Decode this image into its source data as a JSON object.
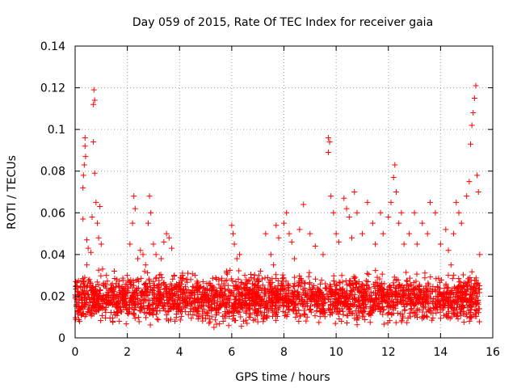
{
  "chart_data": {
    "type": "scatter",
    "title": "Day 059 of 2015, Rate Of TEC Index for receiver gaia",
    "xlabel": "GPS time / hours",
    "ylabel": "ROTI / TECUs",
    "xlim": [
      0,
      16
    ],
    "ylim": [
      0,
      0.14
    ],
    "x_ticks": [
      0,
      2,
      4,
      6,
      8,
      10,
      12,
      14,
      16
    ],
    "x_tick_labels": [
      "0",
      "2",
      "4",
      "6",
      "8",
      "10",
      "12",
      "14",
      "16"
    ],
    "y_ticks": [
      0,
      0.02,
      0.04,
      0.06,
      0.08,
      0.1,
      0.12,
      0.14
    ],
    "y_tick_labels": [
      "0",
      "0.02",
      "0.04",
      "0.06",
      "0.08",
      "0.1",
      "0.12",
      "0.14"
    ],
    "grid": true,
    "marker": "plus",
    "color": "#ff0000",
    "series": [
      {
        "name": "ROTI",
        "points": [
          [
            0.05,
            0.016
          ],
          [
            0.1,
            0.012
          ],
          [
            0.15,
            0.02
          ],
          [
            0.2,
            0.014
          ],
          [
            0.25,
            0.018
          ],
          [
            0.3,
            0.057
          ],
          [
            0.3,
            0.072
          ],
          [
            0.32,
            0.078
          ],
          [
            0.35,
            0.083
          ],
          [
            0.38,
            0.092
          ],
          [
            0.38,
            0.096
          ],
          [
            0.4,
            0.087
          ],
          [
            0.45,
            0.035
          ],
          [
            0.45,
            0.047
          ],
          [
            0.5,
            0.043
          ],
          [
            0.55,
            0.028
          ],
          [
            0.6,
            0.041
          ],
          [
            0.65,
            0.058
          ],
          [
            0.7,
            0.094
          ],
          [
            0.7,
            0.112
          ],
          [
            0.72,
            0.119
          ],
          [
            0.75,
            0.114
          ],
          [
            0.75,
            0.079
          ],
          [
            0.8,
            0.065
          ],
          [
            0.85,
            0.055
          ],
          [
            0.9,
            0.048
          ],
          [
            0.95,
            0.063
          ],
          [
            1.0,
            0.045
          ],
          [
            1.05,
            0.033
          ],
          [
            1.1,
            0.025
          ],
          [
            1.2,
            0.03
          ],
          [
            1.3,
            0.022
          ],
          [
            1.5,
            0.032
          ],
          [
            1.6,
            0.028
          ],
          [
            1.8,
            0.024
          ],
          [
            2.0,
            0.03
          ],
          [
            2.1,
            0.045
          ],
          [
            2.2,
            0.055
          ],
          [
            2.25,
            0.068
          ],
          [
            2.3,
            0.062
          ],
          [
            2.4,
            0.038
          ],
          [
            2.5,
            0.042
          ],
          [
            2.6,
            0.04
          ],
          [
            2.7,
            0.035
          ],
          [
            2.8,
            0.055
          ],
          [
            2.85,
            0.068
          ],
          [
            2.9,
            0.06
          ],
          [
            3.0,
            0.045
          ],
          [
            3.1,
            0.04
          ],
          [
            3.3,
            0.038
          ],
          [
            3.4,
            0.046
          ],
          [
            3.5,
            0.05
          ],
          [
            3.6,
            0.048
          ],
          [
            3.7,
            0.043
          ],
          [
            3.8,
            0.03
          ],
          [
            4.0,
            0.025
          ],
          [
            4.3,
            0.028
          ],
          [
            4.6,
            0.03
          ],
          [
            4.9,
            0.027
          ],
          [
            5.2,
            0.025
          ],
          [
            5.5,
            0.028
          ],
          [
            5.8,
            0.032
          ],
          [
            6.0,
            0.054
          ],
          [
            6.05,
            0.05
          ],
          [
            6.1,
            0.045
          ],
          [
            6.2,
            0.038
          ],
          [
            6.3,
            0.04
          ],
          [
            6.5,
            0.03
          ],
          [
            6.8,
            0.026
          ],
          [
            7.0,
            0.024
          ],
          [
            7.1,
            0.032
          ],
          [
            7.3,
            0.05
          ],
          [
            7.5,
            0.04
          ],
          [
            7.6,
            0.035
          ],
          [
            7.7,
            0.054
          ],
          [
            7.8,
            0.048
          ],
          [
            8.0,
            0.055
          ],
          [
            8.1,
            0.06
          ],
          [
            8.2,
            0.05
          ],
          [
            8.3,
            0.046
          ],
          [
            8.4,
            0.038
          ],
          [
            8.6,
            0.052
          ],
          [
            8.75,
            0.064
          ],
          [
            9.0,
            0.05
          ],
          [
            9.2,
            0.044
          ],
          [
            9.5,
            0.04
          ],
          [
            9.7,
            0.089
          ],
          [
            9.7,
            0.096
          ],
          [
            9.75,
            0.094
          ],
          [
            9.8,
            0.068
          ],
          [
            9.9,
            0.06
          ],
          [
            10.0,
            0.05
          ],
          [
            10.1,
            0.046
          ],
          [
            10.3,
            0.067
          ],
          [
            10.4,
            0.062
          ],
          [
            10.5,
            0.058
          ],
          [
            10.6,
            0.048
          ],
          [
            10.7,
            0.07
          ],
          [
            10.8,
            0.06
          ],
          [
            11.0,
            0.05
          ],
          [
            11.2,
            0.065
          ],
          [
            11.4,
            0.055
          ],
          [
            11.5,
            0.045
          ],
          [
            11.7,
            0.06
          ],
          [
            11.8,
            0.05
          ],
          [
            12.0,
            0.058
          ],
          [
            12.1,
            0.065
          ],
          [
            12.2,
            0.077
          ],
          [
            12.25,
            0.083
          ],
          [
            12.3,
            0.07
          ],
          [
            12.4,
            0.055
          ],
          [
            12.5,
            0.06
          ],
          [
            12.6,
            0.045
          ],
          [
            12.8,
            0.05
          ],
          [
            13.0,
            0.06
          ],
          [
            13.1,
            0.045
          ],
          [
            13.3,
            0.055
          ],
          [
            13.5,
            0.05
          ],
          [
            13.6,
            0.065
          ],
          [
            13.8,
            0.06
          ],
          [
            14.0,
            0.045
          ],
          [
            14.2,
            0.052
          ],
          [
            14.3,
            0.042
          ],
          [
            14.4,
            0.035
          ],
          [
            14.5,
            0.05
          ],
          [
            14.6,
            0.065
          ],
          [
            14.7,
            0.06
          ],
          [
            14.8,
            0.055
          ],
          [
            15.0,
            0.068
          ],
          [
            15.1,
            0.075
          ],
          [
            15.15,
            0.093
          ],
          [
            15.2,
            0.102
          ],
          [
            15.25,
            0.108
          ],
          [
            15.3,
            0.115
          ],
          [
            15.35,
            0.121
          ],
          [
            15.4,
            0.078
          ],
          [
            15.45,
            0.07
          ],
          [
            15.5,
            0.04
          ]
        ]
      }
    ]
  }
}
